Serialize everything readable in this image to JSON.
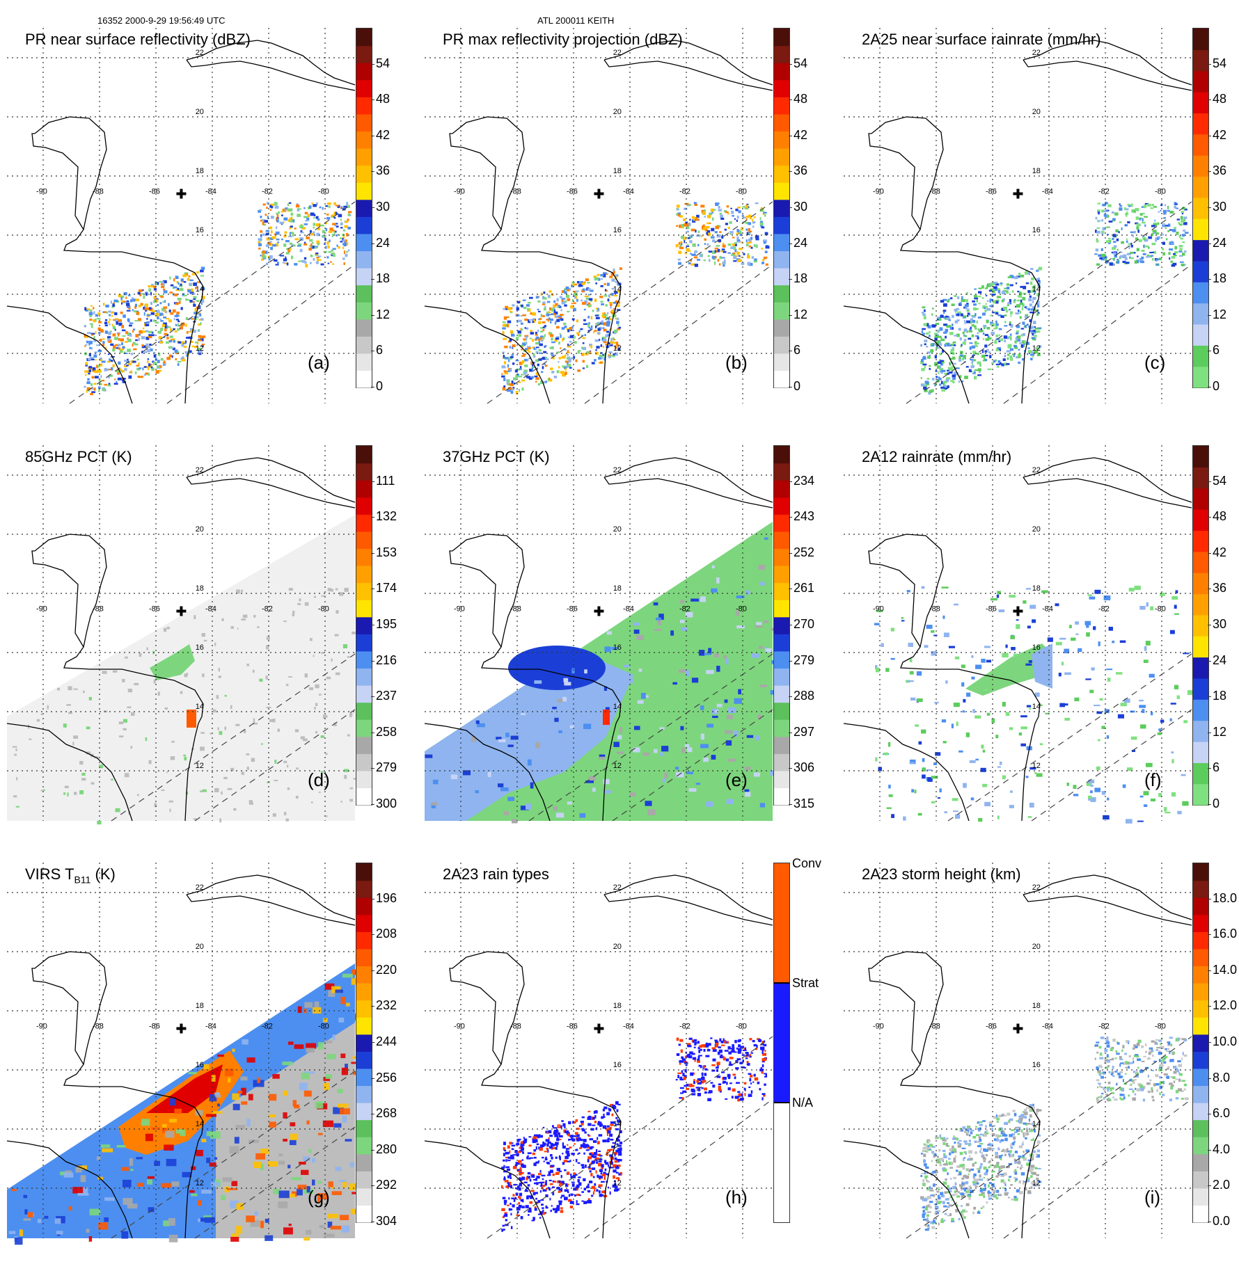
{
  "header": {
    "orbit_time": "16352 2000-9-29 19:56:49 UTC",
    "storm_id": "ATL 200011 KEITH"
  },
  "map": {
    "lon_labels": [
      "-90",
      "-88",
      "-86",
      "-84",
      "-82",
      "-80"
    ],
    "lat_labels": [
      "22",
      "20",
      "18",
      "16",
      "14",
      "12"
    ],
    "storm_center_marker": "plus-icon"
  },
  "colors": {
    "coast": "#000000",
    "swath_edge": "#444444",
    "grid": "#333333"
  },
  "panels": [
    {
      "id": "a",
      "label": "(a)",
      "title": "PR near surface reflectivity (dBZ)",
      "scale": "standard",
      "field": "swath_sparse",
      "ticks": [
        "54",
        "48",
        "42",
        "36",
        "30",
        "24",
        "18",
        "12",
        "6",
        "0"
      ]
    },
    {
      "id": "b",
      "label": "(b)",
      "title": "PR max reflectivity projection (dBZ)",
      "scale": "standard",
      "field": "swath_sparse",
      "ticks": [
        "54",
        "48",
        "42",
        "36",
        "30",
        "24",
        "18",
        "12",
        "6",
        "0"
      ]
    },
    {
      "id": "c",
      "label": "(c)",
      "title": "2A25 near surface rainrate (mm/hr)",
      "scale": "rain",
      "field": "swath_sparse",
      "ticks": [
        "54",
        "48",
        "42",
        "36",
        "30",
        "24",
        "18",
        "12",
        "6",
        "0"
      ]
    },
    {
      "id": "d",
      "label": "(d)",
      "title": "85GHz PCT (K)",
      "scale": "standard",
      "field": "tmi_gray",
      "ticks": [
        "111",
        "132",
        "153",
        "174",
        "195",
        "216",
        "237",
        "258",
        "279",
        "300"
      ]
    },
    {
      "id": "e",
      "label": "(e)",
      "title": "37GHz PCT (K)",
      "scale": "standard",
      "field": "tmi_green",
      "ticks": [
        "234",
        "243",
        "252",
        "261",
        "270",
        "279",
        "288",
        "297",
        "306",
        "315"
      ]
    },
    {
      "id": "f",
      "label": "(f)",
      "title": "2A12 rainrate (mm/hr)",
      "scale": "rain",
      "field": "tmi_rain",
      "ticks": [
        "54",
        "48",
        "42",
        "36",
        "30",
        "24",
        "18",
        "12",
        "6",
        "0"
      ]
    },
    {
      "id": "g",
      "label": "(g)",
      "title_main": "VIRS T",
      "title_sub": "B11",
      "title_unit": " (K)",
      "scale": "standard",
      "field": "virs",
      "ticks": [
        "196",
        "208",
        "220",
        "232",
        "244",
        "256",
        "268",
        "280",
        "292",
        "304"
      ]
    },
    {
      "id": "h",
      "label": "(h)",
      "title": "2A23 rain types",
      "scale": "raintype",
      "field": "swath_types",
      "ticks": [
        "Conv",
        "Strat",
        "N/A"
      ]
    },
    {
      "id": "i",
      "label": "(i)",
      "title": "2A23 storm height (km)",
      "scale": "height",
      "field": "swath_sparse",
      "ticks": [
        "18.0",
        "16.0",
        "14.0",
        "12.0",
        "10.0",
        "8.0",
        "6.0",
        "4.0",
        "2.0",
        "0.0"
      ]
    }
  ]
}
